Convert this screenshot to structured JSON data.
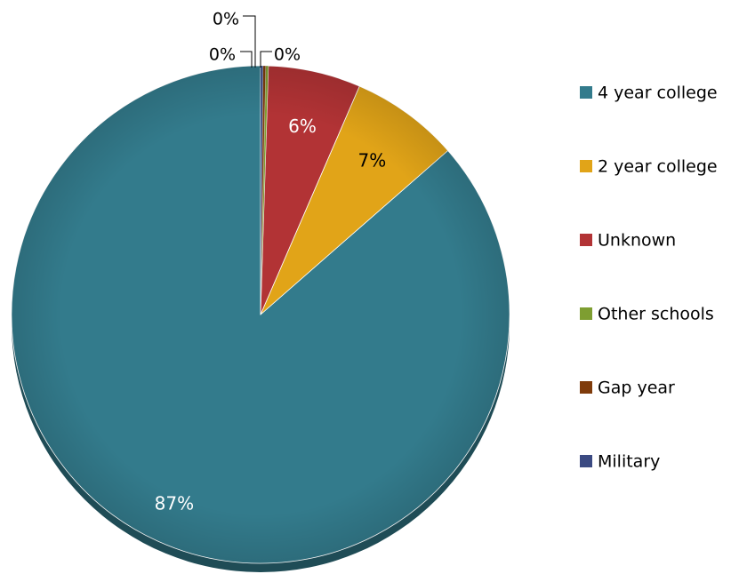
{
  "chart_data": {
    "type": "pie",
    "title": "",
    "categories": [
      "4 year college",
      "2 year college",
      "Unknown",
      "Other schools",
      "Gap year",
      "Military"
    ],
    "values": [
      87,
      7,
      6,
      0,
      0,
      0
    ],
    "labels": [
      "87%",
      "7%",
      "6%",
      "0%",
      "0%",
      "0%"
    ],
    "colors": [
      "#337b8c",
      "#e1a418",
      "#b23335",
      "#7e9e31",
      "#7f3b0b",
      "#3b4a82"
    ],
    "label_colors": [
      "#ffffff",
      "#000000",
      "#ffffff",
      "#000000",
      "#000000",
      "#000000"
    ],
    "start_angle_deg": 0,
    "direction": "counterclockwise",
    "legend_position": "right"
  }
}
